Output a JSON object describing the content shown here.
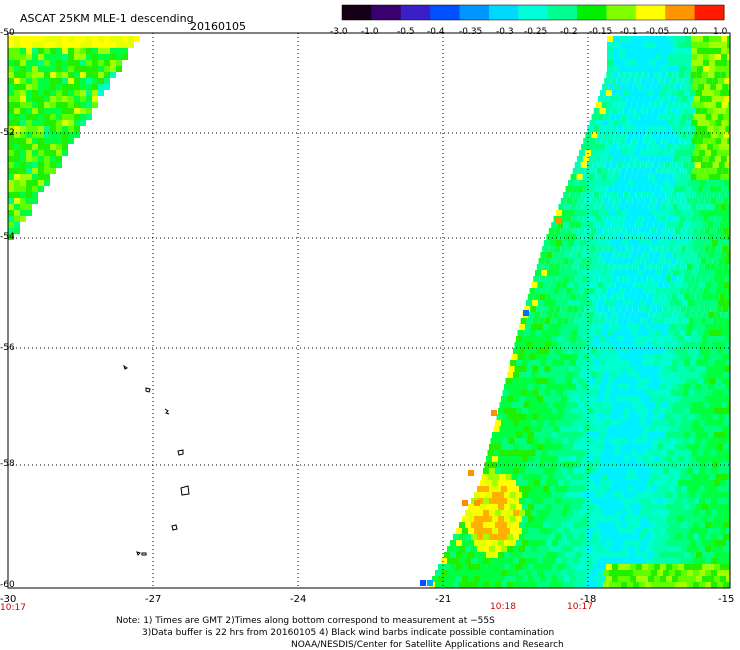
{
  "header": {
    "title": "ASCAT 25KM MLE-1 descending",
    "date": "20160105"
  },
  "colorbar": {
    "labels": [
      "-3.0",
      "-1.0",
      "-0.5",
      "-0.4",
      "-0.35",
      "-0.3",
      "-0.25",
      "-0.2",
      "-0.15",
      "-0.1",
      "-0.05",
      "0.0",
      "1.0"
    ],
    "colors": [
      "#150015",
      "#3b0070",
      "#3a1fc8",
      "#0050ff",
      "#0096ff",
      "#00d8ff",
      "#00ffd8",
      "#00ff90",
      "#00f000",
      "#7fff00",
      "#ffff00",
      "#ff9500",
      "#ff1a00"
    ]
  },
  "axes": {
    "lat_labels": [
      "-50",
      "-52",
      "-54",
      "-56",
      "-58",
      "-60"
    ],
    "lon_labels": [
      "-30",
      "-27",
      "-24",
      "-21",
      "-18",
      "-15"
    ]
  },
  "times": {
    "left": "10:17",
    "mid": "10:18",
    "right": "10:17"
  },
  "notes": {
    "line1": "Note: 1) Times are GMT 2)Times along bottom correspond to measurement at −55S",
    "line2": "3)Data buffer is 22 hrs from 20160105 4) Black wind barbs indicate possible contamination",
    "line3": "NOAA/NESDIS/Center for Satellite Applications and Research"
  }
}
